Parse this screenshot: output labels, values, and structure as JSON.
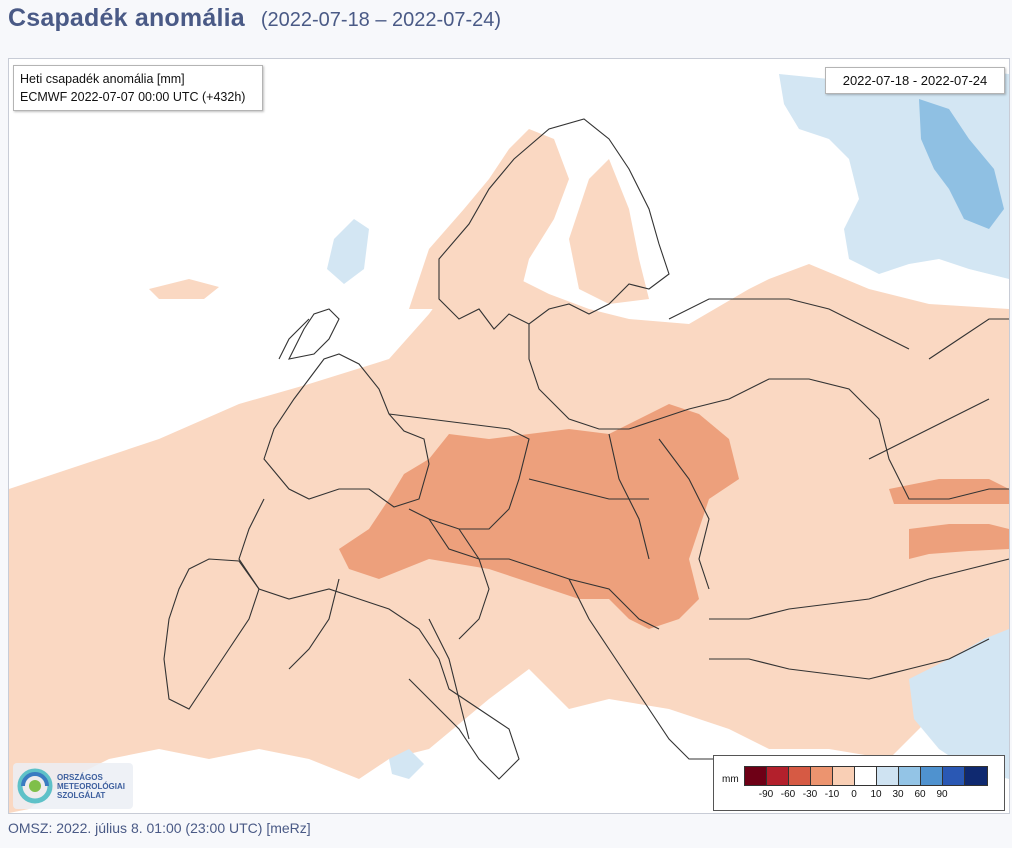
{
  "header": {
    "title": "Csapadék anomália",
    "period": "(2022-07-18 – 2022-07-24)"
  },
  "map": {
    "info_box": {
      "line1": "Heti csapadék anomália [mm]",
      "line2": "ECMWF 2022-07-07 00:00 UTC (+432h)"
    },
    "date_box": "2022-07-18 - 2022-07-24",
    "legend": {
      "unit": "mm",
      "colors": [
        "#6e0016",
        "#b3202c",
        "#d65a44",
        "#ec946f",
        "#f9cfb5",
        "#ffffff",
        "#cfe3f2",
        "#93c4e6",
        "#4f92cf",
        "#2a58b4",
        "#0f2970"
      ],
      "ticks": [
        "-90",
        "-60",
        "-30",
        "-10",
        "0",
        "10",
        "30",
        "60",
        "90"
      ]
    },
    "logo": {
      "line1": "ORSZÁGOS",
      "line2": "METEOROLÓGIAI",
      "line3": "SZOLGÁLAT"
    },
    "colors": {
      "sea": "#ffffff",
      "light_dry": "#fad8c2",
      "medium_dry": "#eda07c",
      "light_wet": "#d3e6f3",
      "medium_wet": "#8fc0e3",
      "border": "#333333"
    }
  },
  "footer": "OMSZ: 2022. július 8. 01:00 (23:00  UTC)  [meRz]"
}
